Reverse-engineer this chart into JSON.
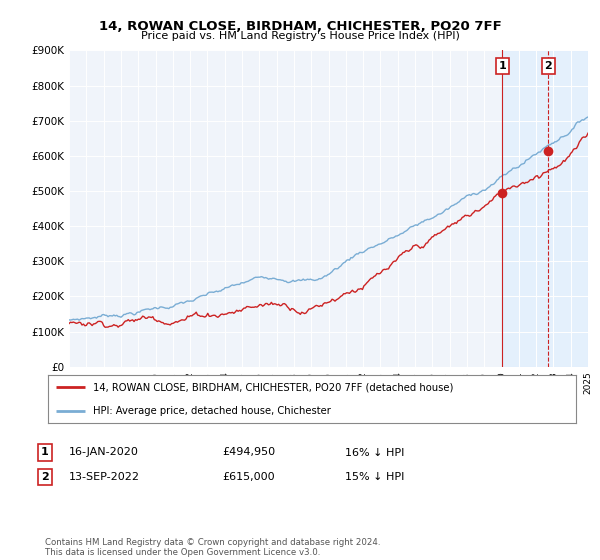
{
  "title": "14, ROWAN CLOSE, BIRDHAM, CHICHESTER, PO20 7FF",
  "subtitle": "Price paid vs. HM Land Registry's House Price Index (HPI)",
  "ylim": [
    0,
    900000
  ],
  "yticks": [
    0,
    100000,
    200000,
    300000,
    400000,
    500000,
    600000,
    700000,
    800000,
    900000
  ],
  "ytick_labels": [
    "£0",
    "£100K",
    "£200K",
    "£300K",
    "£400K",
    "£500K",
    "£600K",
    "£700K",
    "£800K",
    "£900K"
  ],
  "line_red_color": "#cc2222",
  "line_blue_color": "#7aadd4",
  "shade_color": "#ddeeff",
  "transaction1_date": 2020.04,
  "transaction1_price": 494950,
  "transaction2_date": 2022.71,
  "transaction2_price": 615000,
  "legend1_label": "14, ROWAN CLOSE, BIRDHAM, CHICHESTER, PO20 7FF (detached house)",
  "legend2_label": "HPI: Average price, detached house, Chichester",
  "table_row1": [
    "1",
    "16-JAN-2020",
    "£494,950",
    "16% ↓ HPI"
  ],
  "table_row2": [
    "2",
    "13-SEP-2022",
    "£615,000",
    "15% ↓ HPI"
  ],
  "footer": "Contains HM Land Registry data © Crown copyright and database right 2024.\nThis data is licensed under the Open Government Licence v3.0.",
  "bg_color": "#ffffff",
  "plot_bg_color": "#f0f4fa"
}
